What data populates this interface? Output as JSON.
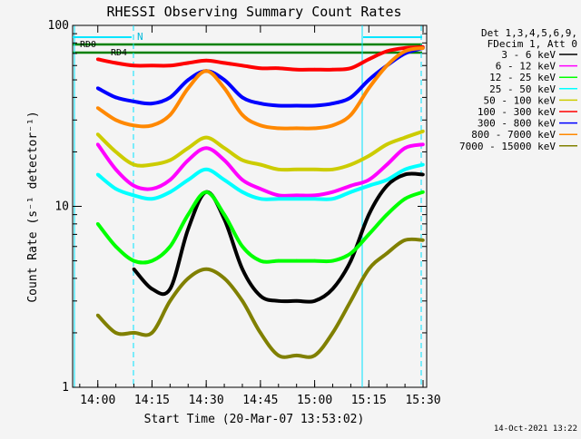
{
  "chart_data": {
    "type": "line",
    "title": "RHESSI Observing Summary Count Rates",
    "xlabel": "Start Time (20-Mar-07 13:53:02)",
    "ylabel": "Count Rate (s⁻¹ detector⁻¹)",
    "y_scale": "log",
    "ylim": [
      1,
      100
    ],
    "xlim": [
      "13:53:02",
      "15:31:00"
    ],
    "x_ticks": [
      "14:00",
      "14:15",
      "14:30",
      "14:45",
      "15:00",
      "15:15",
      "15:30"
    ],
    "y_ticks": [
      "1",
      "10",
      "100"
    ],
    "footer_date": "14-Oct-2021 13:22",
    "legend": {
      "header": [
        "Det 1,3,4,5,6,9,",
        "FDecim 1, Att 0"
      ],
      "placement": "right"
    },
    "annotations": {
      "night_label": "N",
      "rd0_label": "RD0",
      "rd4_label": "RD4"
    },
    "x": [
      "13:55",
      "14:00",
      "14:05",
      "14:10",
      "14:15",
      "14:20",
      "14:25",
      "14:30",
      "14:35",
      "14:40",
      "14:45",
      "14:50",
      "14:55",
      "15:00",
      "15:05",
      "15:10",
      "15:15",
      "15:20",
      "15:25",
      "15:30"
    ],
    "series": [
      {
        "name": "3 - 6 keV",
        "color": "#000000",
        "values": [
          null,
          null,
          null,
          4.5,
          3.5,
          3.5,
          7.5,
          12,
          8.5,
          4.5,
          3.2,
          3,
          3,
          3,
          3.5,
          5,
          9,
          13,
          15,
          15
        ]
      },
      {
        "name": "6 - 12 keV",
        "color": "#ff00ff",
        "values": [
          null,
          22,
          16,
          13,
          12.5,
          14,
          18,
          21,
          18,
          14,
          12.5,
          11.5,
          11.5,
          11.5,
          12,
          13,
          14,
          17,
          21,
          22
        ]
      },
      {
        "name": "12 - 25 keV",
        "color": "#00ff00",
        "values": [
          null,
          8,
          6,
          5,
          5,
          6,
          9,
          12,
          9,
          6,
          5,
          5,
          5,
          5,
          5,
          5.5,
          7,
          9,
          11,
          12
        ]
      },
      {
        "name": "25 - 50 keV",
        "color": "#00ffff",
        "values": [
          null,
          15,
          12.5,
          11.5,
          11,
          12,
          14,
          16,
          14,
          12,
          11,
          11,
          11,
          11,
          11,
          12,
          13,
          14,
          16,
          17
        ]
      },
      {
        "name": "50 - 100 keV",
        "color": "#cccc00",
        "values": [
          null,
          25,
          20,
          17,
          17,
          18,
          21,
          24,
          21,
          18,
          17,
          16,
          16,
          16,
          16,
          17,
          19,
          22,
          24,
          26
        ]
      },
      {
        "name": "100 - 300 keV",
        "color": "#ff0000",
        "values": [
          null,
          65,
          62,
          60,
          60,
          60,
          62,
          64,
          62,
          60,
          58,
          58,
          57,
          57,
          57,
          58,
          65,
          72,
          75,
          76
        ]
      },
      {
        "name": "300 - 800 keV",
        "color": "#0000ff",
        "values": [
          null,
          45,
          40,
          38,
          37,
          40,
          50,
          56,
          50,
          40,
          37,
          36,
          36,
          36,
          37,
          40,
          50,
          60,
          70,
          75
        ]
      },
      {
        "name": "800 - 7000 keV",
        "color": "#ff8800",
        "values": [
          null,
          35,
          30,
          28,
          28,
          32,
          45,
          56,
          45,
          32,
          28,
          27,
          27,
          27,
          28,
          32,
          45,
          60,
          72,
          75
        ]
      },
      {
        "name": "7000 - 15000 keV",
        "color": "#808000",
        "values": [
          null,
          2.5,
          2,
          2,
          2,
          3,
          4,
          4.5,
          4,
          3,
          2,
          1.5,
          1.5,
          1.5,
          2,
          3,
          4.5,
          5.5,
          6.5,
          6.5
        ]
      }
    ]
  }
}
